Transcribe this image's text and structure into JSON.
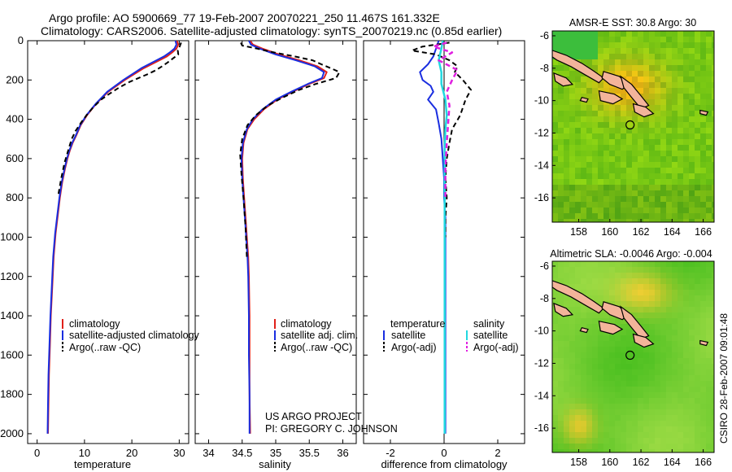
{
  "header": {
    "line1": "Argo profile: AO 5900669_77 19-Feb-2007 20070221_250 11.467S 161.332E",
    "line2": "Climatology: CARS2006. Satellite-adjusted climatology: synTS_20070219.nc (0.85d earlier)"
  },
  "credits": {
    "project": "US ARGO PROJECT",
    "pi": "PI: GREGORY C. JOHNSON",
    "stamp": "CSIRO 28-Feb-2007 09:01:48"
  },
  "colors": {
    "climatology": "#e0201a",
    "satellite": "#1a2ee0",
    "argo": "#000000",
    "sat_diff": "#22d8e0",
    "argo_adj_diff": "#e020e0"
  },
  "chart_data": [
    {
      "id": "temperature",
      "type": "line",
      "xlabel": "temperature",
      "ylabel": "",
      "xlim": [
        -2,
        32
      ],
      "ylim": [
        2050,
        0
      ],
      "xticks": [
        0,
        10,
        20,
        30
      ],
      "yticks": [
        0,
        200,
        400,
        600,
        800,
        1000,
        1200,
        1400,
        1600,
        1800,
        2000
      ],
      "legend": [
        {
          "label": "climatology",
          "style": "climatology"
        },
        {
          "label": "satellite-adjusted climatology",
          "style": "satellite"
        },
        {
          "label": "Argo(..raw -QC)",
          "style": "argo"
        }
      ],
      "series": [
        {
          "name": "climatology",
          "style": "climatology",
          "x": [
            29.5,
            29.8,
            29.4,
            28.5,
            27.4,
            25.8,
            22.5,
            18.5,
            15,
            12.5,
            10.5,
            9.2,
            8.3,
            7.5,
            6.9,
            6.4,
            5.9,
            5.3,
            4.8,
            4.4,
            3.9,
            3.5,
            3.2,
            2.9,
            2.7,
            2.5,
            2.4,
            2.3
          ],
          "y": [
            0,
            20,
            40,
            60,
            80,
            100,
            140,
            200,
            260,
            320,
            380,
            430,
            480,
            520,
            560,
            600,
            650,
            720,
            800,
            880,
            980,
            1100,
            1250,
            1400,
            1550,
            1700,
            1850,
            2000
          ]
        },
        {
          "name": "satellite",
          "style": "satellite",
          "x": [
            29.2,
            29.4,
            29,
            28,
            26.8,
            25.2,
            22,
            18.2,
            14.8,
            12.4,
            10.4,
            9.1,
            8.2,
            7.4,
            6.8,
            6.3,
            5.8,
            5.2,
            4.7,
            4.3,
            3.8,
            3.4,
            3.1,
            2.8,
            2.6,
            2.4,
            2.3,
            2.2
          ],
          "y": [
            0,
            20,
            40,
            60,
            80,
            100,
            140,
            200,
            260,
            320,
            380,
            430,
            480,
            520,
            560,
            600,
            650,
            720,
            800,
            880,
            980,
            1100,
            1250,
            1400,
            1550,
            1700,
            1850,
            2000
          ]
        },
        {
          "name": "Argo",
          "style": "argo",
          "x": [
            30.4,
            30.1,
            29.7,
            29.8,
            28.7,
            27.6,
            26.4,
            25.1,
            23.4,
            21.4,
            19.5,
            17.2,
            15.3,
            13.5,
            11.8,
            10.4,
            9.2,
            8.1,
            7.3,
            6.8,
            6.3,
            5.8,
            5.1,
            4.5
          ],
          "y": [
            10,
            30,
            50,
            70,
            90,
            110,
            130,
            150,
            170,
            190,
            210,
            240,
            270,
            300,
            340,
            380,
            420,
            460,
            500,
            540,
            580,
            620,
            700,
            780
          ]
        }
      ]
    },
    {
      "id": "salinity",
      "type": "line",
      "xlabel": "salinity",
      "ylabel": "",
      "xlim": [
        33.8,
        36.2
      ],
      "ylim": [
        2050,
        0
      ],
      "xticks": [
        34,
        34.5,
        35,
        35.5,
        36
      ],
      "legend": [
        {
          "label": "climatology",
          "style": "climatology"
        },
        {
          "label": "satellite adj. clim.",
          "style": "satellite"
        },
        {
          "label": "Argo(..raw -QC)",
          "style": "argo"
        }
      ],
      "series": [
        {
          "name": "climatology",
          "style": "climatology",
          "x": [
            34.62,
            34.66,
            34.8,
            35.05,
            35.35,
            35.62,
            35.76,
            35.72,
            35.5,
            35.25,
            35.02,
            34.82,
            34.68,
            34.58,
            34.52,
            34.5,
            34.51,
            34.53,
            34.55,
            34.57,
            34.59,
            34.6,
            34.61,
            34.61,
            34.61,
            34.62
          ],
          "y": [
            0,
            20,
            40,
            70,
            100,
            130,
            160,
            190,
            220,
            260,
            300,
            350,
            400,
            450,
            520,
            600,
            700,
            800,
            900,
            1000,
            1100,
            1200,
            1400,
            1600,
            1800,
            2000
          ]
        },
        {
          "name": "satellite",
          "style": "satellite",
          "x": [
            34.6,
            34.63,
            34.76,
            35.0,
            35.3,
            35.58,
            35.72,
            35.69,
            35.48,
            35.23,
            35.0,
            34.8,
            34.66,
            34.57,
            34.51,
            34.49,
            34.5,
            34.52,
            34.54,
            34.56,
            34.58,
            34.59,
            34.6,
            34.6,
            34.61,
            34.61
          ],
          "y": [
            0,
            20,
            40,
            70,
            100,
            130,
            160,
            190,
            220,
            260,
            300,
            350,
            400,
            450,
            520,
            600,
            700,
            800,
            900,
            1000,
            1100,
            1200,
            1400,
            1600,
            1800,
            2000
          ]
        },
        {
          "name": "Argo",
          "style": "argo",
          "x": [
            34.48,
            34.5,
            34.72,
            34.98,
            35.28,
            35.55,
            35.68,
            35.82,
            35.95,
            35.9,
            35.6,
            35.35,
            35.1,
            34.88,
            34.7,
            34.58,
            34.5,
            34.47,
            34.49,
            34.52,
            34.55,
            34.57
          ],
          "y": [
            10,
            25,
            40,
            60,
            80,
            100,
            120,
            140,
            160,
            190,
            220,
            250,
            290,
            330,
            380,
            430,
            500,
            580,
            680,
            800,
            950,
            1100
          ]
        }
      ]
    },
    {
      "id": "difference",
      "type": "line",
      "xlabel": "difference from climatology",
      "ylabel": "",
      "xlim": [
        -3,
        3
      ],
      "ylim": [
        2050,
        0
      ],
      "xticks": [
        -2,
        0,
        2
      ],
      "legend": [
        {
          "label": "temperature",
          "style": "none"
        },
        {
          "label": "satellite",
          "style": "satellite"
        },
        {
          "label": "Argo(-adj)",
          "style": "argo"
        },
        {
          "label": "salinity",
          "style": "none"
        },
        {
          "label": "satellite",
          "style": "sat_diff"
        },
        {
          "label": "Argo(-adj)",
          "style": "argo_adj_diff"
        }
      ],
      "series": [
        {
          "name": "temperature satellite",
          "style": "satellite",
          "x": [
            -0.2,
            -0.3,
            -0.4,
            -0.6,
            -0.9,
            -0.8,
            -0.5,
            -0.4,
            -0.6,
            -0.3,
            -0.2,
            -0.1,
            -0.05,
            0,
            0,
            0.05,
            0.05,
            0.05,
            0.05,
            0.05,
            0.05,
            0.05
          ],
          "y": [
            0,
            40,
            80,
            120,
            160,
            200,
            230,
            260,
            300,
            350,
            420,
            500,
            600,
            700,
            800,
            900,
            1000,
            1100,
            1200,
            1400,
            1700,
            2000
          ]
        },
        {
          "name": "temperature Argo",
          "style": "argo",
          "x": [
            0.2,
            -0.8,
            -1.2,
            -0.3,
            0.2,
            0.5,
            0.4,
            0.7,
            1.0,
            0.8,
            0.6,
            0.3,
            0.2,
            0.1,
            0.05,
            0.1,
            0.05,
            0.05
          ],
          "y": [
            10,
            30,
            50,
            70,
            100,
            130,
            160,
            200,
            250,
            300,
            380,
            450,
            520,
            600,
            700,
            800,
            900,
            1000
          ]
        },
        {
          "name": "salinity satellite",
          "style": "sat_diff",
          "x": [
            -0.05,
            -0.1,
            -0.2,
            -0.1,
            -0.1,
            0.05,
            0.1,
            0.05,
            0.02,
            0.02,
            0.02,
            0.02,
            0.02,
            0.02,
            0.02,
            0.02,
            0.02,
            0.02
          ],
          "y": [
            0,
            40,
            100,
            160,
            220,
            300,
            380,
            450,
            550,
            650,
            800,
            1000,
            1200,
            1400,
            1600,
            1800,
            1900,
            2000
          ]
        },
        {
          "name": "salinity Argo",
          "style": "argo_adj_diff",
          "x": [
            0.1,
            -0.4,
            0.3,
            -0.2,
            0.5,
            0.3,
            0.1,
            0.2,
            0.15,
            0.1,
            0.05,
            0.05
          ],
          "y": [
            10,
            30,
            60,
            100,
            150,
            200,
            260,
            330,
            420,
            520,
            650,
            800
          ]
        }
      ]
    },
    {
      "id": "sst_map",
      "type": "heatmap",
      "title": "AMSR-E SST: 30.8  Argo: 30",
      "xlim": [
        156.3,
        166.7
      ],
      "ylim": [
        -17.5,
        -5.7
      ],
      "xticks": [
        158,
        160,
        162,
        164,
        166
      ],
      "yticks": [
        -6,
        -8,
        -10,
        -12,
        -14,
        -16
      ],
      "marker": {
        "lon": 161.3,
        "lat": -11.5
      }
    },
    {
      "id": "sla_map",
      "type": "heatmap",
      "title": "Altimetric SLA: -0.0046  Argo: -0.004",
      "xlim": [
        156.3,
        166.7
      ],
      "ylim": [
        -17.5,
        -5.7
      ],
      "xticks": [
        158,
        160,
        162,
        164,
        166
      ],
      "yticks": [
        -6,
        -8,
        -10,
        -12,
        -14,
        -16
      ],
      "marker": {
        "lon": 161.3,
        "lat": -11.5
      }
    }
  ]
}
